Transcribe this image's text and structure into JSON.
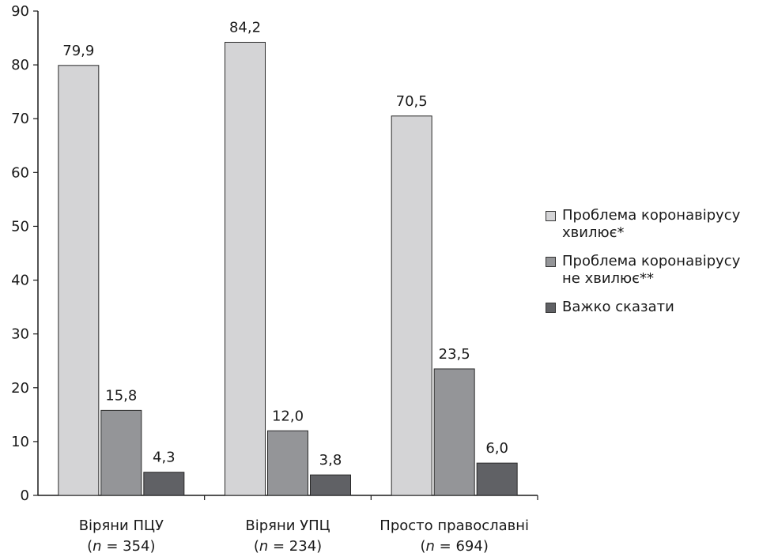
{
  "chart_data": {
    "type": "bar",
    "title": "",
    "xlabel": "",
    "ylabel": "",
    "ylim": [
      0,
      90
    ],
    "yticks": [
      0,
      10,
      20,
      30,
      40,
      50,
      60,
      70,
      80,
      90
    ],
    "categories": [
      {
        "line1": "Віряни ПЦУ",
        "n_label": "n",
        "n_text": " = 354)"
      },
      {
        "line1": "Віряни УПЦ",
        "n_label": "n",
        "n_text": " = 234)"
      },
      {
        "line1": "Просто православні",
        "n_label": "n",
        "n_text": " = 694)"
      }
    ],
    "series": [
      {
        "name": "Проблема коронавірусу\nхвилює*",
        "color": "#d4d4d6",
        "values": [
          79.9,
          84.2,
          70.5
        ],
        "labels": [
          "79,9",
          "84,2",
          "70,5"
        ]
      },
      {
        "name": "Проблема коронавірусу\nне хвилює**",
        "color": "#949598",
        "values": [
          15.8,
          12.0,
          23.5
        ],
        "labels": [
          "15,8",
          "12,0",
          "23,5"
        ]
      },
      {
        "name": "Важко сказати",
        "color": "#606165",
        "values": [
          4.3,
          3.8,
          6.0
        ],
        "labels": [
          "4,3",
          "3,8",
          "6,0"
        ]
      }
    ],
    "legend_position": "right",
    "grid": false
  }
}
